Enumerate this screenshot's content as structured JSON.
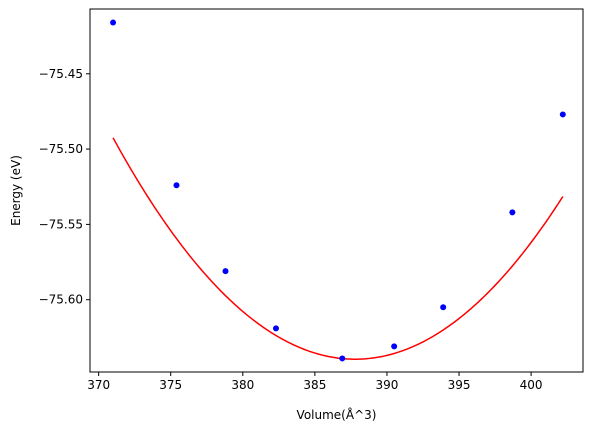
{
  "chart_data": {
    "type": "scatter",
    "title": "",
    "xlabel": "Volume(Å^3)",
    "ylabel": "Energy (eV)",
    "xlim": [
      369.4,
      403.6
    ],
    "ylim": [
      -75.648,
      -75.407
    ],
    "x_ticks": [
      370,
      375,
      380,
      385,
      390,
      395,
      400
    ],
    "y_ticks": [
      -75.45,
      -75.5,
      -75.55,
      -75.6
    ],
    "y_tick_labels": [
      "−75.45",
      "−75.50",
      "−75.55",
      "−75.60"
    ],
    "grid": false,
    "legend": "none",
    "series": [
      {
        "kind": "points",
        "color": "#0000ff",
        "x": [
          371.0,
          375.4,
          378.8,
          382.3,
          386.9,
          390.5,
          393.9,
          398.7,
          402.2
        ],
        "y": [
          -75.416,
          -75.524,
          -75.581,
          -75.619,
          -75.639,
          -75.631,
          -75.605,
          -75.542,
          -75.477
        ]
      },
      {
        "kind": "fit-curve",
        "color": "#ff0000",
        "x_range": [
          371.0,
          402.2
        ],
        "a": 0.0005208,
        "v0": 387.8,
        "e0": -75.6395
      }
    ]
  }
}
